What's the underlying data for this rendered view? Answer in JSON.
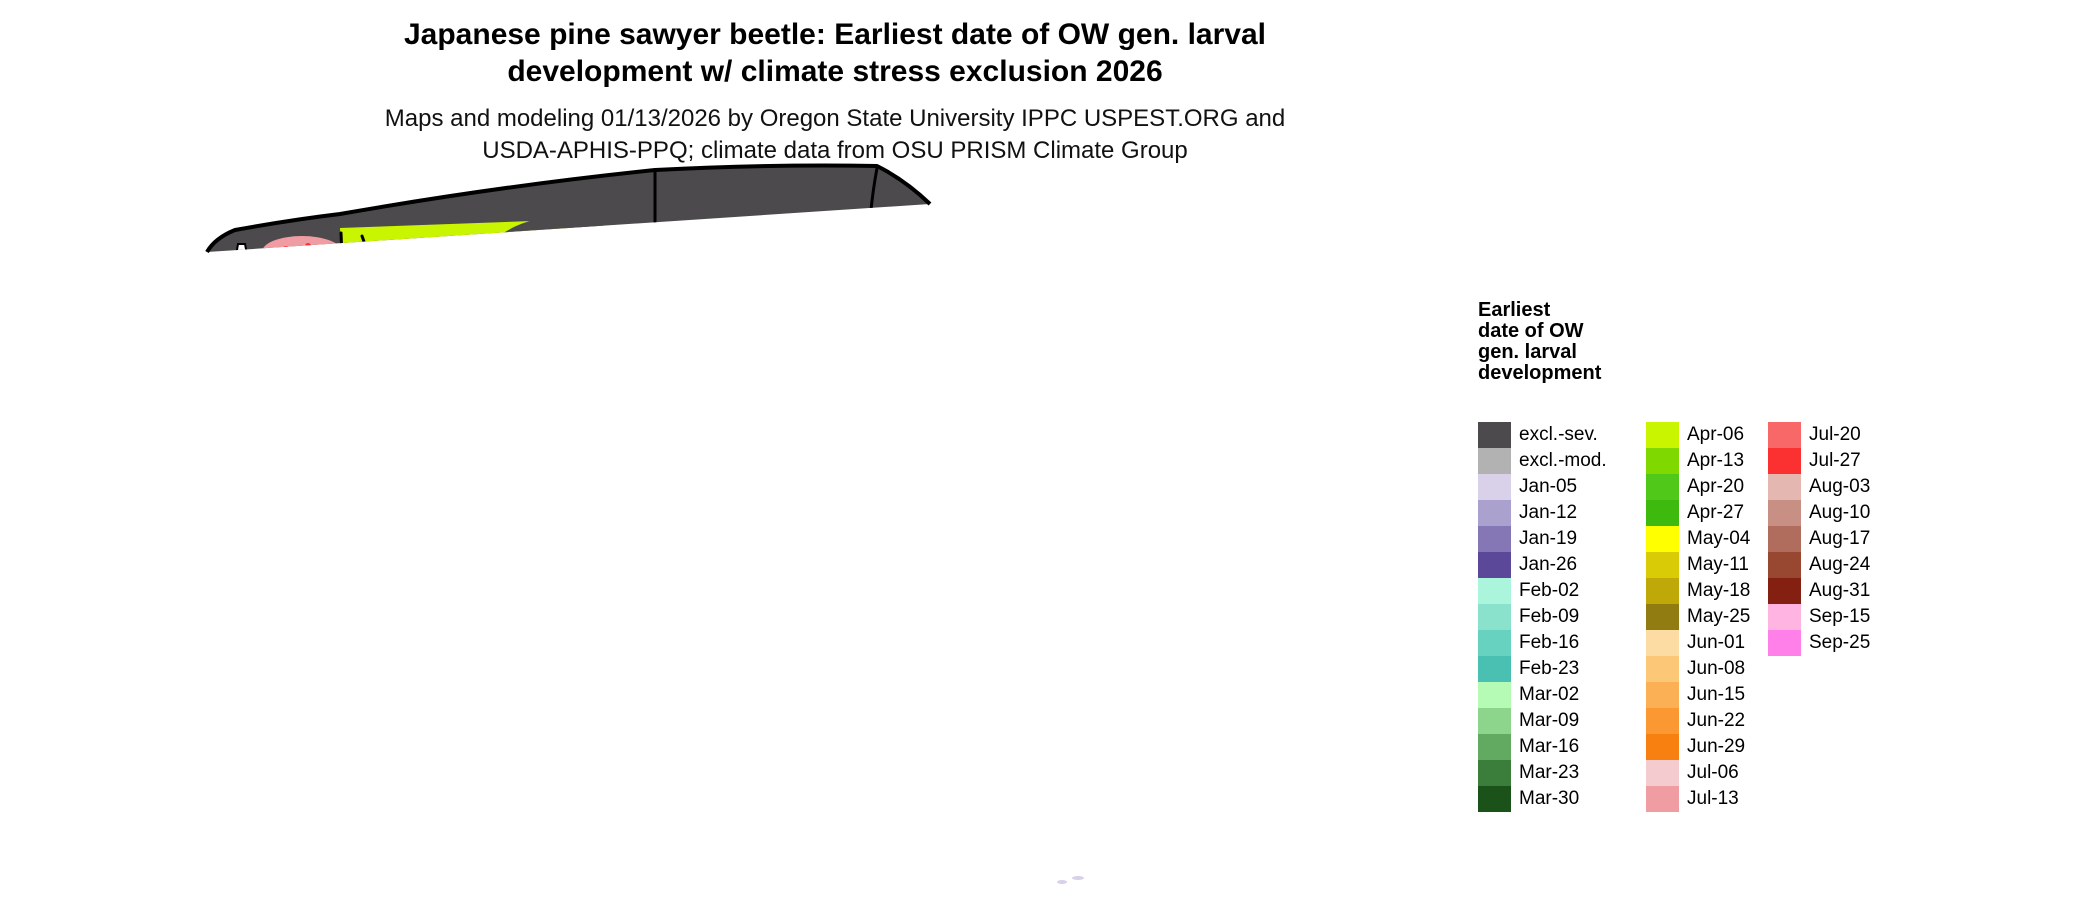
{
  "title": {
    "line1": "Japanese pine sawyer beetle: Earliest date of OW gen. larval",
    "line2": "development w/ climate stress exclusion 2026"
  },
  "subtitle": {
    "line1": "Maps and modeling 01/13/2026 by Oregon State University IPPC USPEST.ORG and",
    "line2": "USDA-APHIS-PPQ; climate data from OSU PRISM Climate Group"
  },
  "legend": {
    "title_lines": [
      "Earliest",
      "date of OW",
      "gen. larval",
      "development"
    ],
    "columns": [
      [
        {
          "label": "excl.-sev.",
          "color": "#4d4a4d"
        },
        {
          "label": "excl.-mod.",
          "color": "#b2b2b2"
        },
        {
          "label": "Jan-05",
          "color": "#d8d1e9"
        },
        {
          "label": "Jan-12",
          "color": "#aaa1ce"
        },
        {
          "label": "Jan-19",
          "color": "#8577b5"
        },
        {
          "label": "Jan-26",
          "color": "#5c4899"
        },
        {
          "label": "Feb-02",
          "color": "#abf5dc"
        },
        {
          "label": "Feb-09",
          "color": "#8ae2cd"
        },
        {
          "label": "Feb-16",
          "color": "#68d2c0"
        },
        {
          "label": "Feb-23",
          "color": "#4ac0b2"
        },
        {
          "label": "Mar-02",
          "color": "#b5fab5"
        },
        {
          "label": "Mar-09",
          "color": "#8dd58d"
        },
        {
          "label": "Mar-16",
          "color": "#62aa62"
        },
        {
          "label": "Mar-23",
          "color": "#3b7d3b"
        },
        {
          "label": "Mar-30",
          "color": "#1a5219"
        }
      ],
      [
        {
          "label": "Apr-06",
          "color": "#c9f500"
        },
        {
          "label": "Apr-13",
          "color": "#7fd800"
        },
        {
          "label": "Apr-20",
          "color": "#4fc81a"
        },
        {
          "label": "Apr-27",
          "color": "#3eb90e"
        },
        {
          "label": "May-04",
          "color": "#ffff00"
        },
        {
          "label": "May-11",
          "color": "#d9cc07"
        },
        {
          "label": "May-18",
          "color": "#bfa908"
        },
        {
          "label": "May-25",
          "color": "#917c11"
        },
        {
          "label": "Jun-01",
          "color": "#fcdca2"
        },
        {
          "label": "Jun-08",
          "color": "#fcc878"
        },
        {
          "label": "Jun-15",
          "color": "#fcb055"
        },
        {
          "label": "Jun-22",
          "color": "#fc9832"
        },
        {
          "label": "Jun-29",
          "color": "#f88010"
        },
        {
          "label": "Jul-06",
          "color": "#f4ccd0"
        },
        {
          "label": "Jul-13",
          "color": "#f09ca3"
        }
      ],
      [
        {
          "label": "Jul-20",
          "color": "#f86868"
        },
        {
          "label": "Jul-27",
          "color": "#fb3030"
        },
        {
          "label": "Aug-03",
          "color": "#e4b8b0"
        },
        {
          "label": "Aug-10",
          "color": "#c89084"
        },
        {
          "label": "Aug-17",
          "color": "#b06c5c"
        },
        {
          "label": "Aug-24",
          "color": "#984830"
        },
        {
          "label": "Aug-31",
          "color": "#842012"
        },
        {
          "label": "Sep-15",
          "color": "#ffb4e1"
        },
        {
          "label": "Sep-25",
          "color": "#ff80e8"
        }
      ]
    ]
  }
}
